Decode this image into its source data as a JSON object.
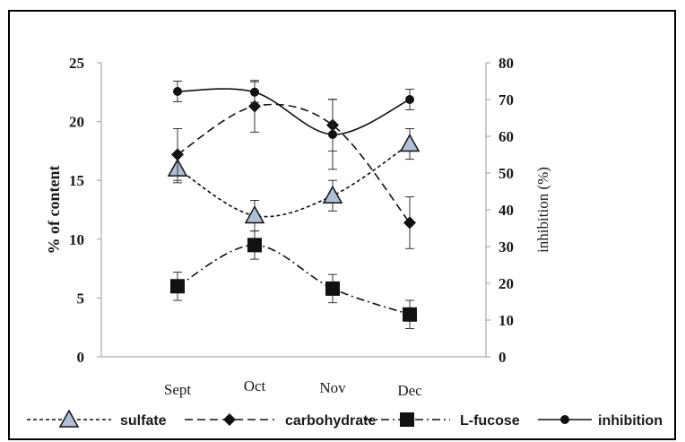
{
  "chart_data": {
    "type": "line",
    "categories": [
      "Sept",
      "Oct",
      "Nov",
      "Dec"
    ],
    "ylabel": "% of content",
    "y2label": "inhibition (%)",
    "ylim": [
      0,
      25
    ],
    "y2lim": [
      0,
      80
    ],
    "yticks": [
      "0",
      "5",
      "10",
      "15",
      "20",
      "25"
    ],
    "y2ticks": [
      "0",
      "10",
      "20",
      "30",
      "40",
      "50",
      "60",
      "70",
      "80"
    ],
    "series": [
      {
        "name": "sulfate",
        "axis": "left",
        "marker": "triangle",
        "dash": "4,3",
        "values": [
          16.0,
          12.0,
          13.7,
          18.1
        ],
        "errors": [
          1.2,
          1.3,
          1.3,
          1.3
        ]
      },
      {
        "name": "carbohydrate",
        "axis": "left",
        "marker": "diamond",
        "dash": "9,5",
        "values": [
          17.2,
          21.3,
          19.7,
          11.4
        ],
        "errors": [
          2.2,
          2.2,
          2.2,
          2.2
        ]
      },
      {
        "name": "L-fucose",
        "axis": "left",
        "marker": "square",
        "dash": "9,4,2,4",
        "values": [
          6.0,
          9.5,
          5.8,
          3.6
        ],
        "errors": [
          1.2,
          1.2,
          1.2,
          1.2
        ]
      },
      {
        "name": "inhibition",
        "axis": "right",
        "marker": "circle",
        "dash": "",
        "values": [
          72.2,
          72.0,
          60.5,
          70.0
        ],
        "errors": [
          2.8,
          2.8,
          9.5,
          2.8
        ]
      }
    ]
  }
}
